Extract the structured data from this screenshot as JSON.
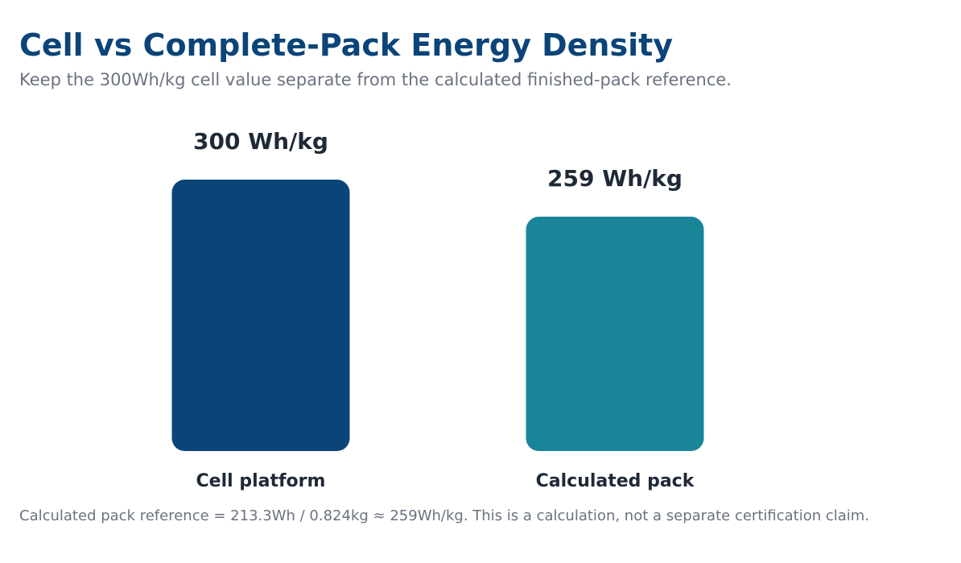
{
  "header": {
    "title": "Cell vs Complete-Pack Energy Density",
    "subtitle": "Keep the 300Wh/kg cell value separate from the calculated finished-pack reference."
  },
  "footnote": "Calculated pack reference = 213.3Wh / 0.824kg ≈ 259Wh/kg. This is a calculation, not a separate certification claim.",
  "chart_data": {
    "type": "bar",
    "categories": [
      "Cell platform",
      "Calculated pack"
    ],
    "values": [
      300,
      259
    ],
    "value_labels": [
      "300 Wh/kg",
      "259 Wh/kg"
    ],
    "colors": [
      "#0b4478",
      "#1a8599"
    ],
    "ylim": [
      0,
      300
    ],
    "grid": false
  },
  "colors": {
    "title": "#0b4478",
    "text_dark": "#1f2937",
    "text_muted": "#6b7280"
  }
}
